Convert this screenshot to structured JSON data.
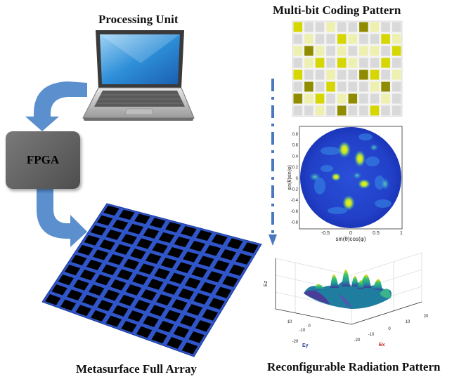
{
  "titles": {
    "processing_unit": "Processing Unit",
    "coding_pattern": "Multi-bit Coding Pattern",
    "metasurface": "Metasurface Full Array",
    "radiation": "Reconfigurable Radiation Pattern"
  },
  "fpga": {
    "label": "FPGA"
  },
  "colors": {
    "arrow_blue": "#5b8fce",
    "dash_blue": "#4a78c0",
    "metasurface_grid": "#2f55c8",
    "metasurface_cell": "#000000",
    "coding_levels": [
      "#d9d9d9",
      "#eef0b0",
      "#d6d600",
      "#8f8c00"
    ]
  },
  "coding_pattern": {
    "rows": 8,
    "cols": 10,
    "levels": [
      [
        2,
        0,
        0,
        1,
        0,
        0,
        3,
        1,
        0,
        0
      ],
      [
        0,
        1,
        0,
        0,
        2,
        1,
        0,
        0,
        2,
        1
      ],
      [
        1,
        3,
        1,
        0,
        1,
        0,
        1,
        1,
        0,
        2
      ],
      [
        0,
        1,
        2,
        0,
        2,
        1,
        0,
        0,
        2,
        0
      ],
      [
        2,
        0,
        0,
        1,
        0,
        0,
        3,
        2,
        0,
        1
      ],
      [
        0,
        3,
        0,
        2,
        0,
        0,
        0,
        1,
        3,
        0
      ],
      [
        3,
        1,
        2,
        0,
        1,
        3,
        0,
        0,
        1,
        0
      ],
      [
        0,
        0,
        1,
        0,
        3,
        0,
        0,
        2,
        0,
        0
      ]
    ]
  },
  "uv_plot": {
    "xlabel": "sin(θ)cos(φ)",
    "ylabel": "sin(θ)sin(φ)",
    "xticks": [
      "-0.5",
      "0",
      "0.5",
      "1"
    ],
    "yticks": [
      "0.8",
      "0.6",
      "0.4",
      "0.2",
      "0",
      "-0.2",
      "-0.4",
      "-0.6",
      "-0.8"
    ]
  },
  "pattern3d": {
    "xlabel": "Ex",
    "ylabel": "Ey",
    "zlabel": "Ez",
    "ex_ticks": [
      "-20",
      "-10",
      "0",
      "10",
      "20"
    ],
    "ey_ticks": [
      "-20",
      "-10",
      "0",
      "10"
    ]
  },
  "metasurface": {
    "rows": 10,
    "cols": 10
  }
}
